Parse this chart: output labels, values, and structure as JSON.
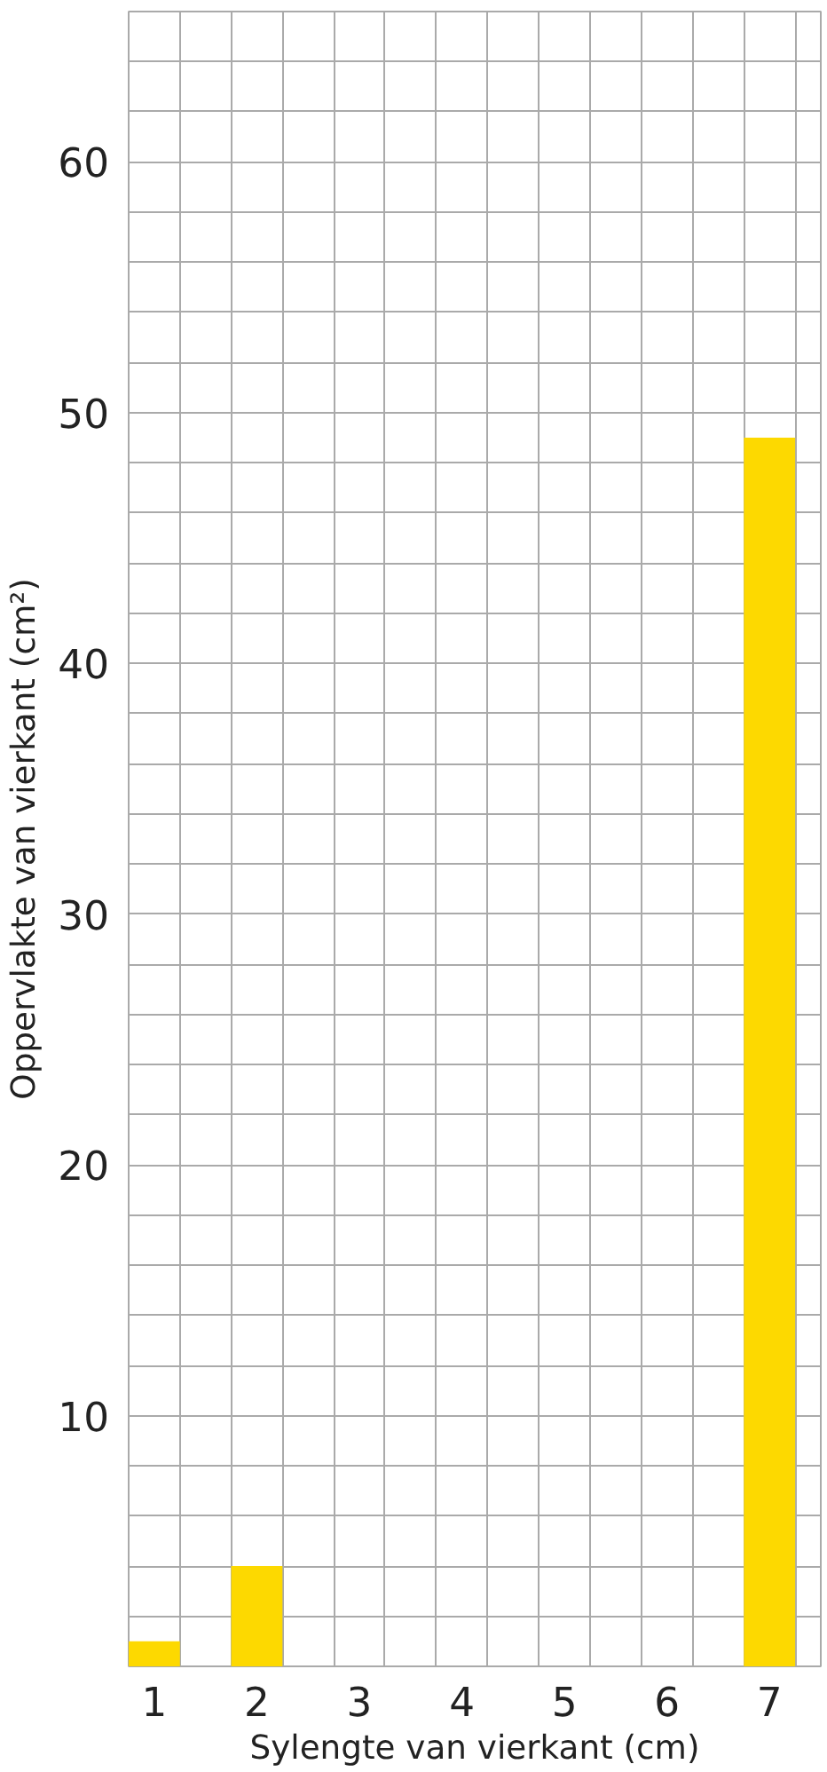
{
  "chart_data": {
    "type": "bar",
    "xlabel": "Sylengte van vierkant (cm)",
    "ylabel": "Oppervlakte van vierkant (cm²)",
    "categories": [
      "1",
      "2",
      "3",
      "4",
      "5",
      "6",
      "7"
    ],
    "values": [
      1,
      4,
      null,
      null,
      null,
      null,
      49
    ],
    "color": "#fdd900",
    "ylim": [
      0,
      66
    ],
    "yticks": [
      10,
      20,
      30,
      40,
      50,
      60
    ],
    "grid": true
  }
}
